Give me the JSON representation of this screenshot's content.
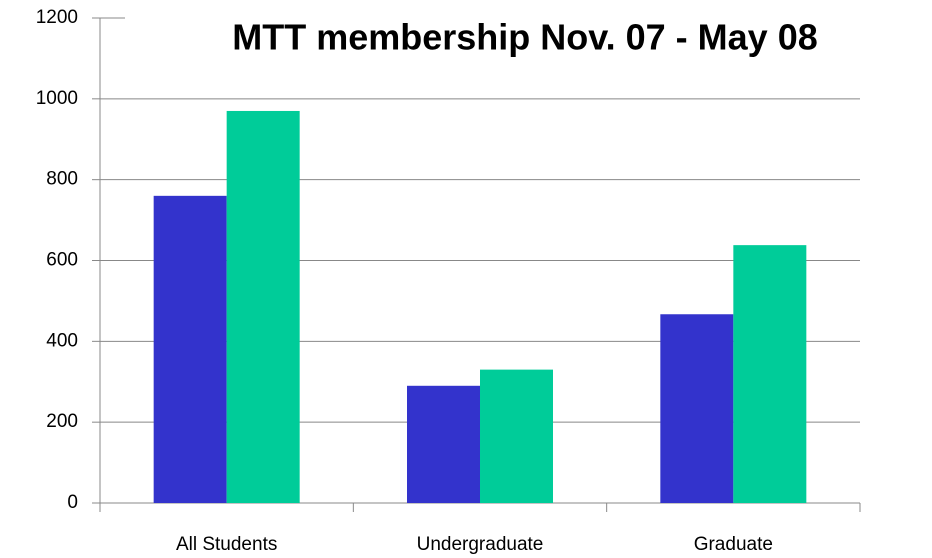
{
  "chart_data": {
    "type": "bar",
    "title": "MTT membership Nov. 07 - May 08",
    "categories": [
      "All Students",
      "Undergraduate",
      "Graduate"
    ],
    "series": [
      {
        "color": "#3333cc",
        "values": [
          760,
          290,
          467
        ]
      },
      {
        "color": "#00cc99",
        "values": [
          970,
          330,
          638
        ]
      }
    ],
    "ylim": [
      0,
      1200
    ],
    "yticks": [
      0,
      200,
      400,
      600,
      800,
      1000,
      1200
    ],
    "grid": true
  }
}
